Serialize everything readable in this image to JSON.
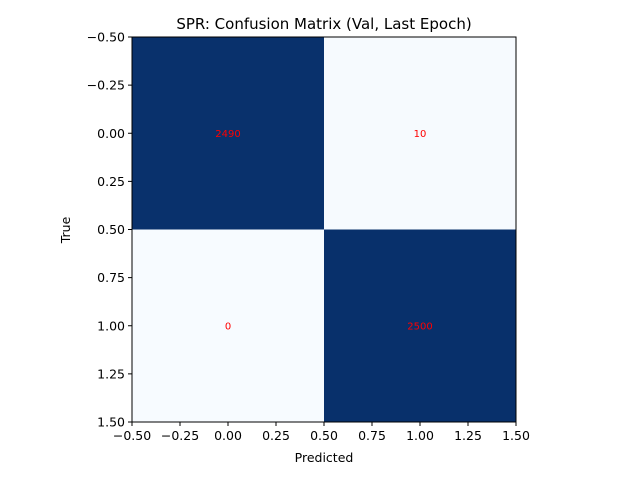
{
  "chart_data": {
    "type": "heatmap",
    "title": "SPR: Confusion Matrix (Val, Last Epoch)",
    "xlabel": "Predicted",
    "ylabel": "True",
    "xlim": [
      -0.5,
      1.5
    ],
    "ylim": [
      1.5,
      -0.5
    ],
    "x_ticks": [
      -0.5,
      -0.25,
      0.0,
      0.25,
      0.5,
      0.75,
      1.0,
      1.25,
      1.5
    ],
    "y_ticks": [
      -0.5,
      -0.25,
      0.0,
      0.25,
      0.5,
      0.75,
      1.0,
      1.25,
      1.5
    ],
    "x_tick_labels": [
      "−0.50",
      "−0.25",
      "0.00",
      "0.25",
      "0.50",
      "0.75",
      "1.00",
      "1.25",
      "1.50"
    ],
    "y_tick_labels": [
      "−0.50",
      "−0.25",
      "0.00",
      "0.25",
      "0.50",
      "0.75",
      "1.00",
      "1.25",
      "1.50"
    ],
    "matrix": [
      [
        2490,
        10
      ],
      [
        0,
        2500
      ]
    ],
    "cell_labels": [
      [
        "2490",
        "10"
      ],
      [
        "0",
        "2500"
      ]
    ],
    "colormap": "Blues",
    "low_color": "#f7fbff",
    "high_color": "#08306b",
    "label_color": "#ff0000",
    "grid": false,
    "legend": "none"
  }
}
